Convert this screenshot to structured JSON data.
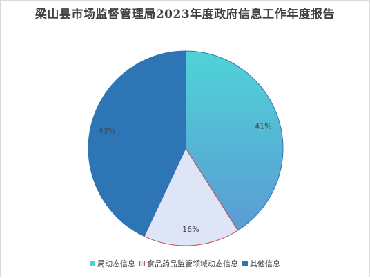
{
  "chart_data": {
    "type": "pie",
    "title": "梁山县市场监督管理局2023年度政府信息工作年度报告",
    "slices": [
      {
        "label": "局动态信息",
        "value": 41,
        "display": "41%",
        "color": "#4fcfd6",
        "color2": "#5b9bd5",
        "stroke": "#2e75b6"
      },
      {
        "label": "食品药品监管领域动态信息",
        "value": 16,
        "display": "16%",
        "color": "#dde5f6",
        "color2": "#dde5f6",
        "stroke": "#c0504d"
      },
      {
        "label": "其他信息",
        "value": 43,
        "display": "43%",
        "color": "#2e75b6",
        "color2": "#2e75b6",
        "stroke": "#2e75b6"
      }
    ],
    "legend_position": "bottom"
  }
}
